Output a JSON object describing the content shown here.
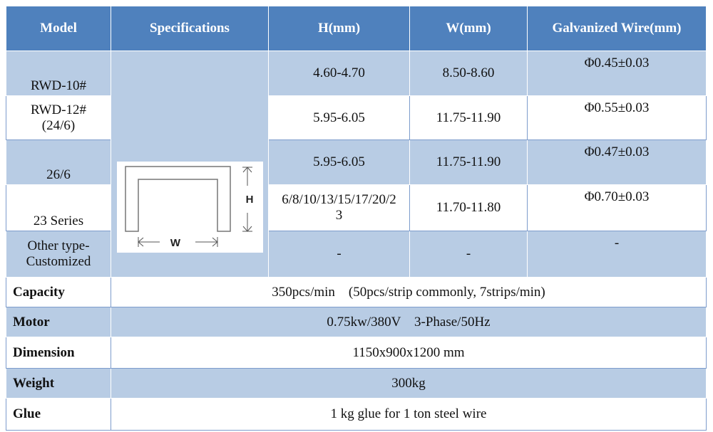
{
  "table": {
    "header": [
      "Model",
      "Specifications",
      "H(mm)",
      "W(mm)",
      "Galvanized Wire(mm)"
    ],
    "spec_diagram": {
      "h_label": "H",
      "w_label": "W"
    },
    "rows": [
      [
        "RWD-10#",
        "4.60-4.70",
        "8.50-8.60",
        "Φ0.45±0.03"
      ],
      [
        "RWD-12#\n(24/6)",
        "5.95-6.05",
        "11.75-11.90",
        "Φ0.55±0.03"
      ],
      [
        "26/6",
        "5.95-6.05",
        "11.75-11.90",
        "Φ0.47±0.03"
      ],
      [
        "23 Series",
        "6/8/10/13/15/17/20/23",
        "11.70-11.80",
        "Φ0.70±0.03"
      ],
      [
        "Other type-\nCustomized",
        "-",
        "-",
        "-"
      ]
    ],
    "summary": [
      {
        "label": "Capacity",
        "value": "350pcs/min    (50pcs/strip commonly, 7strips/min)"
      },
      {
        "label": "Motor",
        "value": "0.75kw/380V    3-Phase/50Hz"
      },
      {
        "label": "Dimension",
        "value": "1150x900x1200 mm"
      },
      {
        "label": "Weight",
        "value": "300kg"
      },
      {
        "label": "Glue",
        "value": "1 kg glue for 1 ton steel wire"
      }
    ]
  }
}
